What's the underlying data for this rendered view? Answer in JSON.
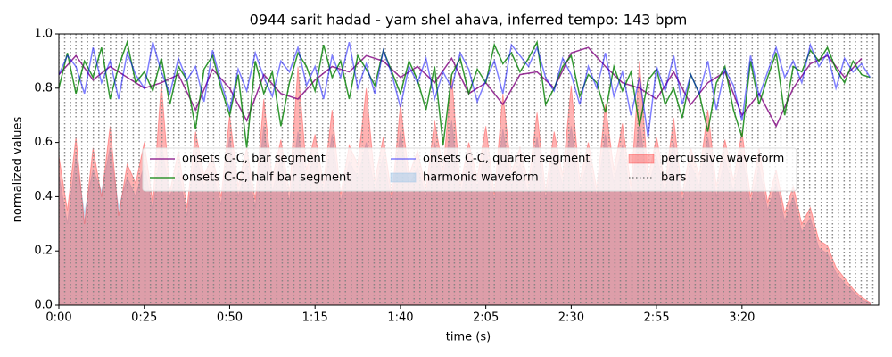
{
  "chart_data": {
    "type": "line",
    "title": "0944 sarit hadad - yam shel ahava, inferred tempo: 143 bpm",
    "xlabel": "time (s)",
    "ylabel": "normalized values",
    "xlim": [
      0,
      240
    ],
    "ylim": [
      0,
      1
    ],
    "xticks": [
      {
        "value": 0,
        "label": "0:00"
      },
      {
        "value": 25,
        "label": "0:25"
      },
      {
        "value": 50,
        "label": "0:50"
      },
      {
        "value": 75,
        "label": "1:15"
      },
      {
        "value": 100,
        "label": "1:40"
      },
      {
        "value": 125,
        "label": "2:05"
      },
      {
        "value": 150,
        "label": "2:30"
      },
      {
        "value": 175,
        "label": "2:55"
      },
      {
        "value": 200,
        "label": "3:20"
      }
    ],
    "yticks": [
      {
        "value": 0,
        "label": "0.0"
      },
      {
        "value": 0.2,
        "label": "0.2"
      },
      {
        "value": 0.4,
        "label": "0.4"
      },
      {
        "value": 0.6,
        "label": "0.6"
      },
      {
        "value": 0.8,
        "label": "0.8"
      },
      {
        "value": 1,
        "label": "1.0"
      }
    ],
    "legend_ncol": 3,
    "x": [
      0,
      2.5,
      5,
      7.5,
      10,
      12.5,
      15,
      17.5,
      20,
      22.5,
      25,
      27.5,
      30,
      32.5,
      35,
      37.5,
      40,
      42.5,
      45,
      47.5,
      50,
      52.5,
      55,
      57.5,
      60,
      62.5,
      65,
      67.5,
      70,
      72.5,
      75,
      77.5,
      80,
      82.5,
      85,
      87.5,
      90,
      92.5,
      95,
      97.5,
      100,
      102.5,
      105,
      107.5,
      110,
      112.5,
      115,
      117.5,
      120,
      122.5,
      125,
      127.5,
      130,
      132.5,
      135,
      137.5,
      140,
      142.5,
      145,
      147.5,
      150,
      152.5,
      155,
      157.5,
      160,
      162.5,
      165,
      167.5,
      170,
      172.5,
      175,
      177.5,
      180,
      182.5,
      185,
      187.5,
      190,
      192.5,
      195,
      197.5,
      200,
      202.5,
      205,
      207.5,
      210,
      212.5,
      215,
      217.5,
      220,
      222.5,
      225,
      227.5,
      230,
      232.5,
      235,
      237.5
    ],
    "series": [
      {
        "name": "onsets C-C, bar segment",
        "style": "line",
        "color": "#800080",
        "alpha": 0.8,
        "x": [
          0,
          5,
          10,
          15,
          20,
          25,
          30,
          35,
          40,
          45,
          50,
          55,
          60,
          65,
          70,
          75,
          80,
          85,
          90,
          95,
          100,
          105,
          110,
          115,
          120,
          125,
          130,
          135,
          140,
          145,
          150,
          155,
          160,
          165,
          170,
          175,
          180,
          185,
          190,
          195,
          200,
          205,
          210,
          215,
          220,
          225,
          230,
          235
        ],
        "values": [
          0.85,
          0.92,
          0.83,
          0.88,
          0.84,
          0.8,
          0.82,
          0.85,
          0.72,
          0.87,
          0.8,
          0.68,
          0.85,
          0.78,
          0.76,
          0.83,
          0.88,
          0.86,
          0.92,
          0.9,
          0.84,
          0.88,
          0.82,
          0.91,
          0.78,
          0.82,
          0.74,
          0.85,
          0.86,
          0.8,
          0.93,
          0.95,
          0.88,
          0.82,
          0.8,
          0.76,
          0.86,
          0.74,
          0.82,
          0.86,
          0.7,
          0.78,
          0.66,
          0.8,
          0.89,
          0.92,
          0.84,
          0.91
        ]
      },
      {
        "name": "onsets C-C, half bar segment",
        "style": "line",
        "color": "#008000",
        "alpha": 0.8,
        "values": [
          0.8,
          0.93,
          0.78,
          0.9,
          0.84,
          0.95,
          0.76,
          0.88,
          0.97,
          0.82,
          0.86,
          0.79,
          0.91,
          0.74,
          0.88,
          0.83,
          0.65,
          0.87,
          0.92,
          0.8,
          0.7,
          0.85,
          0.58,
          0.9,
          0.78,
          0.86,
          0.66,
          0.82,
          0.93,
          0.88,
          0.79,
          0.96,
          0.84,
          0.9,
          0.76,
          0.92,
          0.87,
          0.81,
          0.94,
          0.86,
          0.78,
          0.9,
          0.83,
          0.72,
          0.88,
          0.59,
          0.85,
          0.91,
          0.78,
          0.87,
          0.82,
          0.96,
          0.89,
          0.93,
          0.86,
          0.91,
          0.97,
          0.74,
          0.8,
          0.88,
          0.92,
          0.77,
          0.85,
          0.82,
          0.71,
          0.88,
          0.79,
          0.86,
          0.66,
          0.83,
          0.87,
          0.74,
          0.8,
          0.69,
          0.85,
          0.78,
          0.64,
          0.82,
          0.88,
          0.72,
          0.62,
          0.9,
          0.74,
          0.84,
          0.93,
          0.7,
          0.88,
          0.86,
          0.94,
          0.9,
          0.95,
          0.87,
          0.82,
          0.9,
          0.85,
          0.84
        ]
      },
      {
        "name": "onsets C-C, quarter segment",
        "style": "line",
        "color": "#0000ff",
        "alpha": 0.5,
        "values": [
          0.85,
          0.92,
          0.88,
          0.78,
          0.95,
          0.82,
          0.9,
          0.76,
          0.93,
          0.85,
          0.8,
          0.97,
          0.86,
          0.78,
          0.91,
          0.83,
          0.88,
          0.75,
          0.94,
          0.82,
          0.72,
          0.87,
          0.79,
          0.93,
          0.84,
          0.77,
          0.9,
          0.86,
          0.95,
          0.81,
          0.88,
          0.76,
          0.92,
          0.84,
          0.97,
          0.8,
          0.89,
          0.78,
          0.94,
          0.85,
          0.73,
          0.88,
          0.82,
          0.91,
          0.76,
          0.86,
          0.8,
          0.93,
          0.87,
          0.75,
          0.83,
          0.9,
          0.78,
          0.96,
          0.92,
          0.88,
          0.95,
          0.84,
          0.79,
          0.91,
          0.85,
          0.74,
          0.88,
          0.8,
          0.93,
          0.77,
          0.86,
          0.7,
          0.84,
          0.62,
          0.88,
          0.79,
          0.92,
          0.74,
          0.85,
          0.78,
          0.9,
          0.72,
          0.87,
          0.81,
          0.68,
          0.92,
          0.77,
          0.86,
          0.95,
          0.84,
          0.9,
          0.82,
          0.96,
          0.88,
          0.93,
          0.8,
          0.91,
          0.86,
          0.89,
          0.84
        ]
      },
      {
        "name": "harmonic waveform",
        "style": "area",
        "color": "#9fc5e8",
        "alpha": 0.5,
        "values": [
          0.48,
          0.3,
          0.55,
          0.34,
          0.5,
          0.42,
          0.58,
          0.36,
          0.47,
          0.4,
          0.52,
          0.35,
          0.6,
          0.4,
          0.5,
          0.33,
          0.56,
          0.44,
          0.49,
          0.37,
          0.62,
          0.4,
          0.52,
          0.36,
          0.66,
          0.42,
          0.54,
          0.38,
          0.64,
          0.45,
          0.56,
          0.41,
          0.63,
          0.38,
          0.53,
          0.47,
          0.6,
          0.42,
          0.55,
          0.37,
          0.64,
          0.44,
          0.51,
          0.4,
          0.6,
          0.46,
          0.68,
          0.4,
          0.54,
          0.43,
          0.58,
          0.38,
          0.65,
          0.44,
          0.52,
          0.41,
          0.62,
          0.39,
          0.57,
          0.44,
          0.66,
          0.42,
          0.54,
          0.4,
          0.63,
          0.45,
          0.59,
          0.4,
          0.68,
          0.43,
          0.55,
          0.41,
          0.6,
          0.38,
          0.52,
          0.44,
          0.62,
          0.4,
          0.54,
          0.42,
          0.56,
          0.37,
          0.51,
          0.35,
          0.45,
          0.31,
          0.4,
          0.27,
          0.32,
          0.21,
          0.19,
          0.12,
          0.08,
          0.05,
          0.02,
          0.01
        ]
      },
      {
        "name": "percussive waveform",
        "style": "area",
        "color": "#ff0000",
        "alpha": 0.3,
        "values": [
          0.55,
          0.35,
          0.62,
          0.3,
          0.58,
          0.4,
          0.66,
          0.33,
          0.52,
          0.45,
          0.6,
          0.38,
          0.82,
          0.42,
          0.57,
          0.36,
          0.64,
          0.48,
          0.55,
          0.4,
          0.7,
          0.44,
          0.58,
          0.39,
          0.76,
          0.47,
          0.61,
          0.42,
          0.88,
          0.5,
          0.63,
          0.45,
          0.72,
          0.41,
          0.59,
          0.52,
          0.8,
          0.46,
          0.62,
          0.4,
          0.74,
          0.48,
          0.57,
          0.43,
          0.68,
          0.5,
          0.85,
          0.44,
          0.6,
          0.47,
          0.66,
          0.41,
          0.78,
          0.49,
          0.58,
          0.45,
          0.71,
          0.42,
          0.64,
          0.48,
          0.81,
          0.46,
          0.6,
          0.43,
          0.74,
          0.5,
          0.67,
          0.44,
          0.9,
          0.47,
          0.62,
          0.45,
          0.69,
          0.41,
          0.58,
          0.48,
          0.72,
          0.44,
          0.61,
          0.46,
          0.64,
          0.4,
          0.58,
          0.38,
          0.5,
          0.34,
          0.44,
          0.3,
          0.36,
          0.24,
          0.22,
          0.14,
          0.1,
          0.06,
          0.03,
          0.01
        ]
      },
      {
        "name": "bars",
        "style": "dotted-vlines",
        "color": "#808080",
        "alpha": 0.9,
        "x": [
          0,
          1.7,
          3.4,
          5.0,
          6.7,
          8.4,
          10.1,
          11.7,
          13.4,
          15.1,
          16.8,
          18.5,
          20.1,
          21.8,
          23.5,
          25.2,
          26.8,
          28.5,
          30.2,
          31.9,
          33.6,
          35.2,
          36.9,
          38.6,
          40.3,
          42.0,
          43.6,
          45.3,
          47.0,
          48.7,
          50.3,
          52.0,
          53.7,
          55.4,
          57.1,
          58.7,
          60.4,
          62.1,
          63.8,
          65.4,
          67.1,
          68.8,
          70.5,
          72.2,
          73.8,
          75.5,
          77.2,
          78.9,
          80.5,
          82.2,
          83.9,
          85.6,
          87.3,
          88.9,
          90.6,
          92.3,
          94.0,
          95.6,
          97.3,
          99.0,
          100.7,
          102.4,
          104.0,
          105.7,
          107.4,
          109.1,
          110.7,
          112.4,
          114.1,
          115.8,
          117.5,
          119.1,
          120.8,
          122.5,
          124.2,
          125.9,
          127.5,
          129.2,
          130.9,
          132.6,
          134.2,
          135.9,
          137.6,
          139.3,
          141.0,
          142.6,
          144.3,
          146.0,
          147.7,
          149.3,
          151.0,
          152.7,
          154.4,
          156.1,
          157.7,
          159.4,
          161.1,
          162.8,
          164.4,
          166.1,
          167.8,
          169.5,
          171.2,
          172.8,
          174.5,
          176.2,
          177.9,
          179.5,
          181.2,
          182.9,
          184.6,
          186.3,
          187.9,
          189.6,
          191.3,
          193.0,
          194.6,
          196.3,
          198.0,
          199.7,
          201.4,
          203.0,
          204.7,
          206.4,
          208.1,
          209.8,
          211.4,
          213.1,
          214.8,
          216.5,
          218.1,
          219.8,
          221.5,
          223.2,
          224.9,
          226.5,
          228.2,
          229.9,
          231.6,
          233.2,
          234.9,
          236.6,
          238.3
        ]
      }
    ]
  }
}
